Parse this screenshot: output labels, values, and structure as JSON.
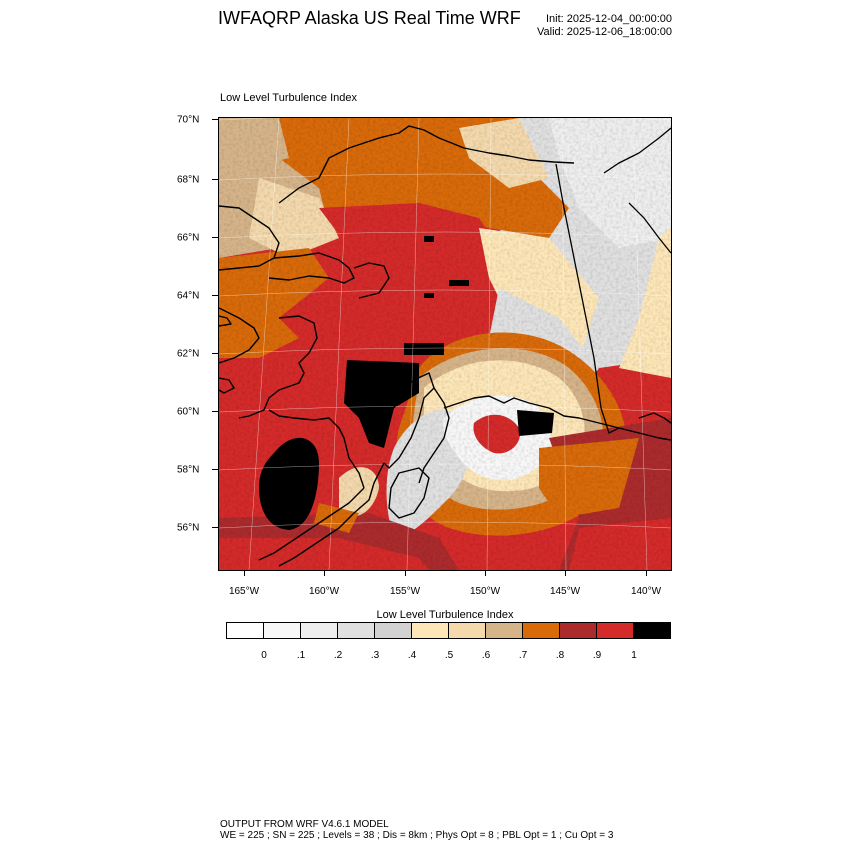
{
  "header": {
    "title": "IWFAQRP Alaska US Real Time WRF",
    "init": "Init: 2025-12-04_00:00:00",
    "valid": "Valid: 2025-12-06_18:00:00"
  },
  "plot": {
    "subtitle": "Low Level Turbulence Index",
    "lat_labels": [
      "70°N",
      "68°N",
      "66°N",
      "64°N",
      "62°N",
      "60°N",
      "58°N",
      "56°N"
    ],
    "lon_labels": [
      "165°W",
      "160°W",
      "155°W",
      "150°W",
      "145°W",
      "140°W"
    ],
    "colors": {
      "c0": "#ffffff",
      "c1": "#f7f7f7",
      "c2": "#eeeeee",
      "c3": "#e0e0e0",
      "c4": "#d2d2d2",
      "c5": "#fde7b8",
      "c6": "#f4d9ad",
      "c7": "#d6b48a",
      "c8": "#d86a0a",
      "c9": "#ab2b2d",
      "c10": "#d42a2a",
      "c11": "#000000",
      "coast": "#000000"
    }
  },
  "colorbar": {
    "title": "Low Level Turbulence Index",
    "colors": [
      "#ffffff",
      "#f7f7f7",
      "#eeeeee",
      "#e0e0e0",
      "#d2d2d2",
      "#fde7b8",
      "#f4d9ad",
      "#d6b48a",
      "#d86a0a",
      "#ab2b2d",
      "#d42a2a",
      "#000000"
    ],
    "labels": [
      "0",
      ".1",
      ".2",
      ".3",
      ".4",
      ".5",
      ".6",
      ".7",
      ".8",
      ".9",
      "1"
    ]
  },
  "footer": {
    "line1": "OUTPUT FROM WRF V4.6.1 MODEL",
    "line2": "WE = 225 ; SN = 225 ; Levels = 38 ; Dis = 8km ; Phys Opt = 8 ; PBL Opt = 1 ; Cu Opt = 3"
  }
}
